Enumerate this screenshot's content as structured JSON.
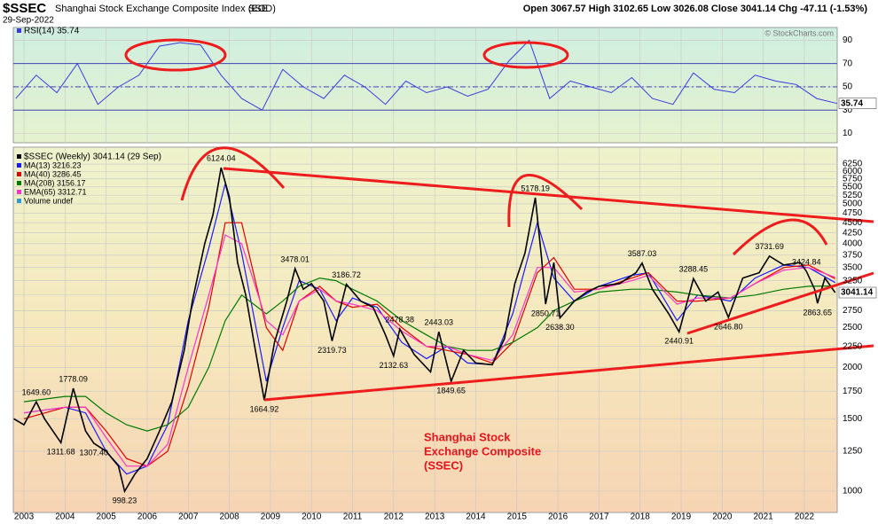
{
  "header": {
    "symbol": "$SSEC",
    "description": "Shanghai Stock Exchange Composite Index (EOD)",
    "exchange": "SSE",
    "date": "29-Sep-2022",
    "quote": "Open 3067.57  High 3102.65  Low 3026.08  Close 3041.14  Chg -47.11 (-1.53%)",
    "watermark": "© StockCharts.com"
  },
  "chart_data": [
    {
      "type": "line",
      "title": "RSI(14) 35.74",
      "color": "#3b3bdc",
      "x": [
        2002.8,
        2003.3,
        2003.8,
        2004.3,
        2004.8,
        2005.3,
        2005.8,
        2006.3,
        2006.8,
        2007.3,
        2007.8,
        2008.3,
        2008.8,
        2009.3,
        2009.8,
        2010.3,
        2010.8,
        2011.3,
        2011.8,
        2012.3,
        2012.8,
        2013.3,
        2013.8,
        2014.3,
        2014.8,
        2015.3,
        2015.8,
        2016.3,
        2016.8,
        2017.3,
        2017.8,
        2018.3,
        2018.8,
        2019.3,
        2019.8,
        2020.3,
        2020.8,
        2021.3,
        2021.8,
        2022.3,
        2022.8
      ],
      "values": [
        40,
        60,
        45,
        70,
        35,
        50,
        60,
        85,
        88,
        86,
        60,
        40,
        30,
        65,
        50,
        40,
        60,
        50,
        35,
        55,
        45,
        50,
        42,
        48,
        72,
        90,
        40,
        55,
        50,
        45,
        58,
        40,
        35,
        62,
        48,
        45,
        60,
        55,
        52,
        40,
        35.74
      ],
      "xlim": [
        2002.74,
        2022.8
      ],
      "ylim": [
        2,
        101
      ],
      "yticks": [
        10,
        30,
        50,
        70,
        90
      ],
      "reference_lines": [
        30,
        50,
        70
      ]
    },
    {
      "type": "line",
      "log_scale": true,
      "grid": true,
      "title": "$SSEC (Weekly) 3041.14 (29 Sep)",
      "xlim": [
        2002.74,
        2022.8
      ],
      "ylim": [
        887,
        6870
      ],
      "xticks": [
        2003,
        2004,
        2005,
        2006,
        2007,
        2008,
        2009,
        2010,
        2011,
        2012,
        2013,
        2014,
        2015,
        2016,
        2017,
        2018,
        2019,
        2020,
        2021,
        2022
      ],
      "yticks": [
        1000,
        1250,
        1500,
        1750,
        2000,
        2250,
        2500,
        2750,
        3000,
        3250,
        3500,
        3750,
        4000,
        4250,
        4500,
        4750,
        5000,
        5250,
        5500,
        5750,
        6000,
        6250
      ],
      "x": [
        2002.75,
        2003.0,
        2003.3,
        2003.5,
        2003.9,
        2004.2,
        2004.5,
        2004.7,
        2005.0,
        2005.3,
        2005.45,
        2005.7,
        2006.0,
        2006.3,
        2006.6,
        2006.9,
        2007.1,
        2007.4,
        2007.6,
        2007.8,
        2008.0,
        2008.2,
        2008.4,
        2008.6,
        2008.85,
        2009.1,
        2009.4,
        2009.6,
        2009.8,
        2010.0,
        2010.3,
        2010.5,
        2010.85,
        2011.2,
        2011.5,
        2011.8,
        2012.0,
        2012.15,
        2012.5,
        2012.9,
        2013.1,
        2013.4,
        2013.7,
        2014.0,
        2014.4,
        2014.7,
        2014.95,
        2015.2,
        2015.45,
        2015.6,
        2015.7,
        2015.9,
        2016.05,
        2016.4,
        2016.7,
        2017.0,
        2017.5,
        2017.9,
        2018.05,
        2018.3,
        2018.7,
        2018.95,
        2019.3,
        2019.6,
        2019.9,
        2020.15,
        2020.5,
        2020.9,
        2021.15,
        2021.5,
        2021.9,
        2022.05,
        2022.25,
        2022.32,
        2022.5,
        2022.75
      ],
      "values": [
        1500,
        1450,
        1649.6,
        1500,
        1311.68,
        1778.09,
        1400,
        1307.4,
        1250,
        1150,
        998.23,
        1100,
        1200,
        1400,
        1650,
        2200,
        2900,
        4000,
        4700,
        6124.04,
        5200,
        3600,
        3000,
        2300,
        1664.92,
        2300,
        2900,
        3478.01,
        3100,
        3200,
        2900,
        2319.73,
        3186.72,
        2900,
        2800,
        2400,
        2132.63,
        2478.38,
        2150,
        1950,
        2443.03,
        1849.65,
        2200,
        2050,
        2030,
        2350,
        3200,
        3800,
        5178.19,
        3700,
        2850.71,
        3600,
        2638.3,
        2900,
        3050,
        3150,
        3200,
        3400,
        3587.03,
        3100,
        2700,
        2440.91,
        3288.45,
        2900,
        3050,
        2646.8,
        3300,
        3400,
        3731.69,
        3550,
        3600,
        3424.84,
        3100,
        2863.65,
        3300,
        3041.14
      ],
      "color": "#000000",
      "series": [
        {
          "name": "MA(13) 3216.23",
          "color": "#1a1aff",
          "x": [
            2003,
            2004,
            2004.5,
            2005,
            2005.5,
            2006,
            2006.5,
            2007,
            2007.5,
            2007.9,
            2008.3,
            2008.9,
            2009.3,
            2009.7,
            2010.2,
            2010.6,
            2011,
            2011.6,
            2012.2,
            2012.8,
            2013.3,
            2013.8,
            2014.4,
            2014.9,
            2015.5,
            2015.9,
            2016.4,
            2017,
            2017.8,
            2018.2,
            2018.9,
            2019.4,
            2020.2,
            2020.8,
            2021.5,
            2022.1,
            2022.75
          ],
          "values": [
            1550,
            1600,
            1550,
            1250,
            1100,
            1150,
            1450,
            2600,
            3900,
            5600,
            3800,
            1850,
            2500,
            3250,
            3100,
            2600,
            2950,
            2800,
            2300,
            2100,
            2250,
            2050,
            2030,
            2700,
            4500,
            3300,
            2900,
            3150,
            3350,
            3400,
            2600,
            3000,
            2900,
            3300,
            3550,
            3500,
            3216.23
          ]
        },
        {
          "name": "MA(40) 3286.45",
          "color": "#e00000",
          "x": [
            2003,
            2004,
            2004.5,
            2005,
            2005.5,
            2006,
            2006.5,
            2007,
            2007.5,
            2007.9,
            2008.3,
            2008.9,
            2009.3,
            2009.7,
            2010.2,
            2010.6,
            2011,
            2011.6,
            2012.2,
            2012.8,
            2013.3,
            2013.8,
            2014.4,
            2014.9,
            2015.5,
            2015.9,
            2016.4,
            2017,
            2017.8,
            2018.2,
            2018.9,
            2019.4,
            2020.2,
            2020.8,
            2021.5,
            2022.1,
            2022.75
          ],
          "values": [
            1500,
            1600,
            1600,
            1400,
            1200,
            1150,
            1250,
            1800,
            2800,
            4500,
            4500,
            2500,
            2200,
            2900,
            3150,
            2900,
            2800,
            2850,
            2500,
            2250,
            2200,
            2150,
            2050,
            2300,
            3400,
            3700,
            3100,
            3100,
            3300,
            3400,
            2900,
            2900,
            2950,
            3200,
            3500,
            3550,
            3286.45
          ]
        },
        {
          "name": "MA(208) 3156.17",
          "color": "#007a00",
          "x": [
            2003,
            2004,
            2004.5,
            2005,
            2005.5,
            2006,
            2006.5,
            2007,
            2007.5,
            2007.9,
            2008.3,
            2008.9,
            2009.3,
            2009.7,
            2010.2,
            2010.6,
            2011,
            2011.6,
            2012.2,
            2012.8,
            2013.3,
            2013.8,
            2014.4,
            2014.9,
            2015.5,
            2015.9,
            2016.4,
            2017,
            2017.8,
            2018.2,
            2018.9,
            2019.4,
            2020.2,
            2020.8,
            2021.5,
            2022.1,
            2022.75
          ],
          "values": [
            1650,
            1700,
            1700,
            1550,
            1450,
            1400,
            1450,
            1600,
            2000,
            2600,
            3000,
            2700,
            2900,
            3150,
            3300,
            3250,
            3100,
            2900,
            2600,
            2400,
            2250,
            2200,
            2200,
            2300,
            2500,
            2750,
            2900,
            3050,
            3100,
            3100,
            3050,
            3000,
            2950,
            3000,
            3100,
            3150,
            3156.17
          ]
        },
        {
          "name": "EMA(65) 3312.71",
          "color": "#ff33cc",
          "x": [
            2003,
            2004,
            2004.5,
            2005,
            2005.5,
            2006,
            2006.5,
            2007,
            2007.5,
            2007.9,
            2008.3,
            2008.9,
            2009.3,
            2009.7,
            2010.2,
            2010.6,
            2011,
            2011.6,
            2012.2,
            2012.8,
            2013.3,
            2013.8,
            2014.4,
            2014.9,
            2015.5,
            2015.9,
            2016.4,
            2017,
            2017.8,
            2018.2,
            2018.9,
            2019.4,
            2020.2,
            2020.8,
            2021.5,
            2022.1,
            2022.75
          ],
          "values": [
            1550,
            1600,
            1600,
            1350,
            1150,
            1150,
            1300,
            2000,
            3000,
            4200,
            4000,
            2600,
            2400,
            2900,
            3100,
            2900,
            2850,
            2750,
            2450,
            2250,
            2250,
            2150,
            2080,
            2400,
            3500,
            3500,
            3050,
            3100,
            3250,
            3350,
            2850,
            2950,
            2950,
            3200,
            3450,
            3500,
            3312.71
          ]
        }
      ],
      "volume_note": "Volume undef",
      "peaks": [
        {
          "x": 2003.3,
          "value": 1649.6,
          "label": "1649.60"
        },
        {
          "x": 2004.2,
          "value": 1778.09,
          "label": "1778.09"
        },
        {
          "x": 2007.8,
          "value": 6124.04,
          "label": "6124.04"
        },
        {
          "x": 2009.6,
          "value": 3478.01,
          "label": "3478.01"
        },
        {
          "x": 2010.85,
          "value": 3186.72,
          "label": "3186.72"
        },
        {
          "x": 2012.15,
          "value": 2478.38,
          "label": "2478.38"
        },
        {
          "x": 2013.1,
          "value": 2443.03,
          "label": "2443.03"
        },
        {
          "x": 2015.45,
          "value": 5178.19,
          "label": "5178.19"
        },
        {
          "x": 2018.05,
          "value": 3587.03,
          "label": "3587.03"
        },
        {
          "x": 2019.3,
          "value": 3288.45,
          "label": "3288.45"
        },
        {
          "x": 2021.15,
          "value": 3731.69,
          "label": "3731.69"
        },
        {
          "x": 2022.05,
          "value": 3424.84,
          "label": "3424.84"
        }
      ],
      "troughs": [
        {
          "x": 2003.9,
          "value": 1311.68,
          "label": "1311.68"
        },
        {
          "x": 2004.7,
          "value": 1307.4,
          "label": "1307.40"
        },
        {
          "x": 2005.45,
          "value": 998.23,
          "label": "998.23"
        },
        {
          "x": 2008.85,
          "value": 1664.92,
          "label": "1664.92"
        },
        {
          "x": 2010.5,
          "value": 2319.73,
          "label": "2319.73"
        },
        {
          "x": 2012.0,
          "value": 2132.63,
          "label": "2132.63"
        },
        {
          "x": 2013.4,
          "value": 1849.65,
          "label": "1849.65"
        },
        {
          "x": 2015.7,
          "value": 2850.71,
          "label": "2850.71"
        },
        {
          "x": 2016.05,
          "value": 2638.3,
          "label": "2638.30"
        },
        {
          "x": 2018.95,
          "value": 2440.91,
          "label": "2440.91"
        },
        {
          "x": 2020.15,
          "value": 2646.8,
          "label": "2646.80"
        },
        {
          "x": 2022.32,
          "value": 2863.65,
          "label": "2863.65"
        }
      ],
      "note": [
        "Shanghai Stock",
        "Exchange Composite",
        "(SSEC)"
      ]
    }
  ]
}
